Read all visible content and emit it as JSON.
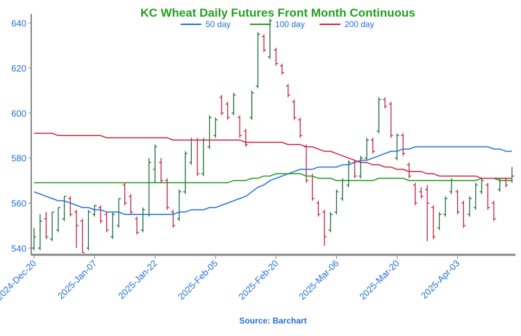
{
  "chart_data": {
    "type": "ohlc",
    "title": "KC Wheat Daily Futures Front Month Continuous",
    "source": "Source: Barchart",
    "categories": [
      "2024-Dec-20",
      null,
      null,
      null,
      null,
      null,
      null,
      null,
      null,
      null,
      "2025-Jan-07",
      null,
      null,
      null,
      null,
      null,
      null,
      null,
      null,
      null,
      "2025-Jan-22",
      null,
      null,
      null,
      null,
      null,
      null,
      null,
      null,
      null,
      "2025-Feb-05",
      null,
      null,
      null,
      null,
      null,
      null,
      null,
      null,
      null,
      "2025-Feb-20",
      null,
      null,
      null,
      null,
      null,
      null,
      null,
      null,
      null,
      "2025-Mar-06",
      null,
      null,
      null,
      null,
      null,
      null,
      null,
      null,
      null,
      "2025-Mar-20",
      null,
      null,
      null,
      null,
      null,
      null,
      null,
      null,
      null,
      "2025-Apr-03",
      null,
      null,
      null,
      null,
      null,
      null,
      null,
      null,
      null
    ],
    "open": [
      540,
      540,
      553,
      544,
      548,
      553,
      562,
      556,
      552,
      540,
      555,
      558,
      555,
      545,
      550,
      568,
      563,
      553,
      548,
      555,
      575,
      578,
      570,
      556,
      553,
      565,
      578,
      588,
      573,
      585,
      590,
      607,
      604,
      600,
      598,
      592,
      598,
      612,
      634,
      625,
      628,
      621,
      612,
      605,
      597,
      585,
      572,
      560,
      556,
      548,
      556,
      562,
      568,
      578,
      572,
      580,
      588,
      592,
      606,
      604,
      580,
      590,
      577,
      568,
      565,
      566,
      558,
      549,
      555,
      565,
      565,
      560,
      555,
      558,
      565,
      568,
      560,
      566,
      570,
      570
    ],
    "high": [
      549,
      555,
      556,
      556,
      558,
      563,
      563,
      557,
      553,
      557,
      559,
      559,
      556,
      556,
      562,
      569,
      564,
      554,
      558,
      580,
      586,
      580,
      571,
      557,
      566,
      583,
      589,
      589,
      589,
      599,
      598,
      608,
      605,
      609,
      599,
      593,
      610,
      636,
      635,
      642,
      629,
      622,
      613,
      606,
      598,
      586,
      573,
      561,
      557,
      556,
      566,
      571,
      579,
      579,
      581,
      589,
      589,
      607,
      607,
      605,
      591,
      591,
      578,
      569,
      567,
      568,
      559,
      556,
      563,
      571,
      566,
      561,
      563,
      569,
      571,
      569,
      561,
      571,
      571,
      576
    ],
    "low": [
      539,
      539,
      544,
      543,
      547,
      552,
      554,
      540,
      538,
      539,
      554,
      551,
      547,
      544,
      549,
      559,
      555,
      546,
      547,
      554,
      569,
      569,
      557,
      549,
      552,
      564,
      577,
      572,
      572,
      584,
      589,
      599,
      597,
      599,
      589,
      585,
      597,
      611,
      627,
      624,
      621,
      617,
      607,
      597,
      589,
      569,
      561,
      554,
      541,
      547,
      555,
      561,
      567,
      571,
      571,
      579,
      582,
      591,
      602,
      589,
      579,
      581,
      571,
      559,
      562,
      543,
      544,
      548,
      554,
      564,
      555,
      549,
      554,
      557,
      564,
      557,
      552,
      565,
      567,
      569
    ],
    "close": [
      545,
      552,
      545,
      556,
      558,
      563,
      555,
      550,
      538,
      556,
      559,
      552,
      548,
      555,
      562,
      560,
      556,
      547,
      557,
      578,
      585,
      570,
      558,
      550,
      565,
      582,
      588,
      573,
      588,
      598,
      597,
      600,
      598,
      608,
      590,
      586,
      609,
      635,
      628,
      641,
      622,
      618,
      608,
      598,
      590,
      570,
      562,
      555,
      545,
      555,
      565,
      570,
      578,
      572,
      580,
      588,
      583,
      606,
      603,
      590,
      590,
      582,
      572,
      560,
      563,
      560,
      545,
      555,
      562,
      570,
      556,
      550,
      562,
      568,
      570,
      558,
      553,
      570,
      568,
      572
    ],
    "up_color": "#1b6b3a",
    "down_color": "#c4203e",
    "series": [
      {
        "name": "50 day",
        "color": "#1f6fd6",
        "values": [
          565,
          564,
          563,
          562,
          561,
          561,
          560,
          559,
          558,
          558,
          557,
          557,
          556,
          556,
          556,
          555,
          555,
          555,
          555,
          555,
          555,
          555,
          555,
          555,
          556,
          556,
          557,
          557,
          557,
          558,
          558,
          559,
          560,
          561,
          562,
          563,
          565,
          567,
          568,
          570,
          571,
          572,
          573,
          574,
          575,
          575,
          575,
          576,
          576,
          576,
          576,
          577,
          577,
          578,
          579,
          579,
          580,
          581,
          582,
          583,
          583,
          584,
          584,
          585,
          585,
          585,
          585,
          585,
          585,
          585,
          585,
          585,
          585,
          585,
          585,
          585,
          584,
          584,
          583,
          583
        ]
      },
      {
        "name": "100 day",
        "color": "#1f9a1f",
        "values": [
          569,
          569,
          569,
          569,
          569,
          569,
          569,
          569,
          569,
          569,
          569,
          569,
          569,
          569,
          569,
          569,
          569,
          569,
          569,
          569,
          569,
          569,
          569,
          569,
          569,
          569,
          569,
          569,
          569,
          569,
          569,
          569,
          569,
          570,
          570,
          570,
          571,
          571,
          572,
          572,
          573,
          573,
          573,
          573,
          573,
          572,
          572,
          571,
          571,
          571,
          570,
          570,
          570,
          570,
          570,
          570,
          570,
          571,
          571,
          571,
          571,
          571,
          570,
          570,
          570,
          570,
          570,
          570,
          570,
          570,
          570,
          570,
          570,
          570,
          571,
          571,
          571,
          570,
          570,
          570
        ]
      },
      {
        "name": "200 day",
        "color": "#d0203f",
        "values": [
          591,
          591,
          591,
          591,
          590,
          590,
          590,
          590,
          590,
          590,
          590,
          590,
          589,
          589,
          589,
          589,
          589,
          589,
          589,
          589,
          589,
          589,
          589,
          588,
          588,
          588,
          588,
          588,
          588,
          588,
          588,
          588,
          588,
          588,
          588,
          587,
          587,
          587,
          587,
          587,
          587,
          587,
          586,
          586,
          586,
          585,
          585,
          584,
          583,
          583,
          582,
          581,
          580,
          579,
          578,
          578,
          577,
          577,
          576,
          576,
          575,
          575,
          574,
          574,
          574,
          573,
          573,
          572,
          572,
          572,
          572,
          572,
          572,
          572,
          571,
          571,
          571,
          571,
          571,
          571
        ]
      }
    ],
    "ylim": [
      537,
      641
    ],
    "yticks": [
      540,
      560,
      580,
      600,
      620,
      640
    ]
  }
}
